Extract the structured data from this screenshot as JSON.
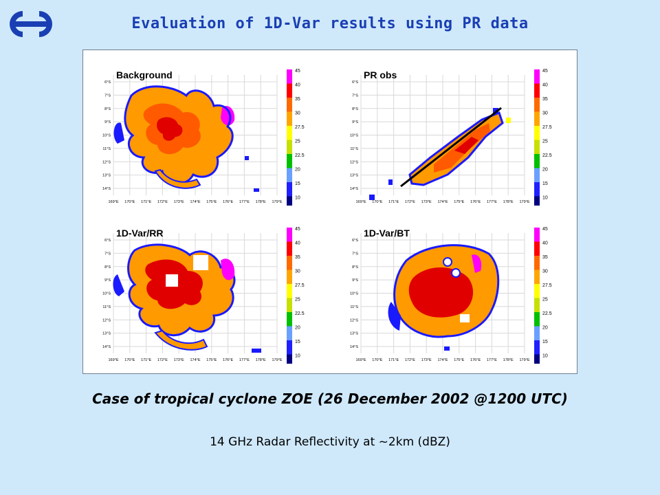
{
  "header": {
    "title": "Evaluation of 1D-Var results using PR data"
  },
  "figure": {
    "colorbar_ticks": [
      "45",
      "40",
      "35",
      "30",
      "27.5",
      "25",
      "22.5",
      "20",
      "15",
      "10"
    ],
    "colorbar_colors": [
      "#ff00ff",
      "#ff0000",
      "#ff6a00",
      "#ffa500",
      "#ffff00",
      "#c6e000",
      "#00c000",
      "#6aa0ff",
      "#2020ff",
      "#000080"
    ],
    "y_ticks": [
      "6°S",
      "7°S",
      "8°S",
      "9°S",
      "10°S",
      "11°S",
      "12°S",
      "13°S",
      "14°S"
    ],
    "x_ticks": [
      "169°E",
      "170°E",
      "171°E",
      "172°E",
      "173°E",
      "174°E",
      "175°E",
      "176°E",
      "177°E",
      "178°E",
      "179°E"
    ],
    "panels": [
      {
        "id": "background",
        "label": "Background"
      },
      {
        "id": "pr-obs",
        "label": "PR obs"
      },
      {
        "id": "var-rr",
        "label": "1D-Var/RR"
      },
      {
        "id": "var-bt",
        "label": "1D-Var/BT"
      }
    ]
  },
  "caption": "Case of tropical cyclone ZOE (26 December 2002 @1200 UTC)",
  "subcaption": "14 GHz Radar Reflectivity at ~2km (dBZ)"
}
